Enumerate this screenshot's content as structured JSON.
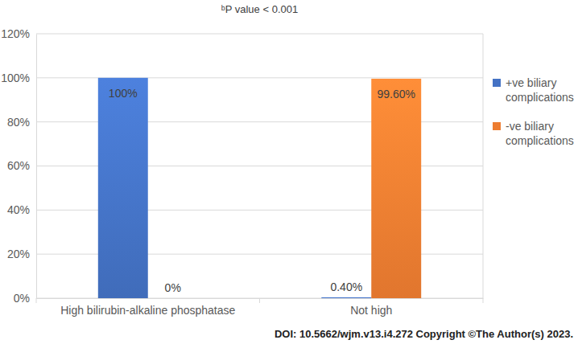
{
  "chart_data": {
    "type": "bar",
    "title": "ᵇP value < 0.001",
    "footer": "DOI: 10.5662/wjm.v13.i4.272 Copyright ©The Author(s) 2023.",
    "categories": [
      "High bilirubin-alkaline phosphatase",
      "Not high"
    ],
    "series": [
      {
        "name": "+ve biliary complications",
        "color": "#4472c4",
        "values": [
          100,
          0.4
        ],
        "value_labels": [
          "100%",
          "0.40%"
        ]
      },
      {
        "name": "-ve biliary complications",
        "color": "#ed7d31",
        "values": [
          0,
          99.6
        ],
        "value_labels": [
          "0%",
          "99.60%"
        ]
      }
    ],
    "ylim": [
      0,
      120
    ],
    "yticks": [
      {
        "value": 0,
        "label": "0%"
      },
      {
        "value": 20,
        "label": "20%"
      },
      {
        "value": 40,
        "label": "40%"
      },
      {
        "value": 60,
        "label": "60%"
      },
      {
        "value": 80,
        "label": "80%"
      },
      {
        "value": 100,
        "label": "100%"
      },
      {
        "value": 120,
        "label": "120%"
      }
    ],
    "grid": true,
    "legend": "right",
    "data_labels": true
  }
}
